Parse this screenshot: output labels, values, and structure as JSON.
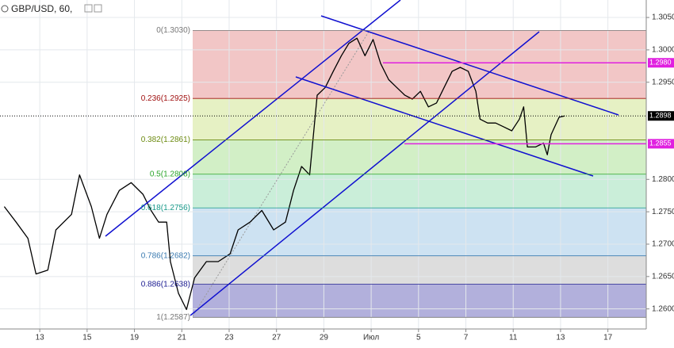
{
  "chart_data": {
    "type": "line",
    "title": "GBP/USD, 60,",
    "x": [
      -0.75,
      -0.5,
      -0.25,
      -0.08,
      0.17,
      0.34,
      0.67,
      0.84,
      1.09,
      1.26,
      1.42,
      1.68,
      1.93,
      2.18,
      2.35,
      2.51,
      2.68,
      2.76,
      2.93,
      3.1,
      3.27,
      3.52,
      3.77,
      4.02,
      4.19,
      4.44,
      4.69,
      4.94,
      5.19,
      5.36,
      5.53,
      5.7,
      5.86,
      6.03,
      6.2,
      6.37,
      6.53,
      6.7,
      6.87,
      7.04,
      7.2,
      7.37,
      7.54,
      7.71,
      7.87,
      8.04,
      8.21,
      8.38,
      8.54,
      8.71,
      8.88,
      9.05,
      9.21,
      9.3,
      9.46,
      9.63,
      9.8,
      9.97,
      10.13,
      10.22,
      10.3,
      10.47,
      10.64,
      10.72,
      10.8,
      10.97,
      11.09
    ],
    "series": [
      {
        "color": "#000000",
        "values": [
          1.2758,
          1.2734,
          1.2709,
          1.2654,
          1.266,
          1.2722,
          1.2746,
          1.2807,
          1.2758,
          1.2709,
          1.2746,
          1.2783,
          1.2795,
          1.2777,
          1.2752,
          1.2734,
          1.2734,
          1.2673,
          1.2624,
          1.2599,
          1.2648,
          1.2673,
          1.2673,
          1.2685,
          1.2722,
          1.2734,
          1.2752,
          1.2722,
          1.2734,
          1.2783,
          1.282,
          1.2807,
          1.293,
          1.2942,
          1.2967,
          1.2991,
          1.301,
          1.3018,
          1.2991,
          1.3016,
          1.2979,
          1.2954,
          1.2942,
          1.293,
          1.2924,
          1.2936,
          1.2912,
          1.2918,
          1.2942,
          1.2967,
          1.2973,
          1.2967,
          1.2936,
          1.2893,
          1.2887,
          1.2887,
          1.2881,
          1.2875,
          1.2893,
          1.2912,
          1.285,
          1.285,
          1.2856,
          1.2838,
          1.2869,
          1.2896,
          1.2898
        ]
      }
    ],
    "xlim": [
      -0.84,
      12.81
    ],
    "xticks": [
      {
        "value": 0,
        "label": "13"
      },
      {
        "value": 1,
        "label": "15"
      },
      {
        "value": 2,
        "label": "19"
      },
      {
        "value": 3,
        "label": "21"
      },
      {
        "value": 4,
        "label": "23"
      },
      {
        "value": 5,
        "label": "27"
      },
      {
        "value": 6,
        "label": "29"
      },
      {
        "value": 7,
        "label": "Июл"
      },
      {
        "value": 8,
        "label": "5"
      },
      {
        "value": 9,
        "label": "7"
      },
      {
        "value": 10,
        "label": "11"
      },
      {
        "value": 11,
        "label": "13"
      },
      {
        "value": 12,
        "label": "17"
      }
    ],
    "ylim": [
      1.2569,
      1.3077
    ],
    "yticks": [
      {
        "value": 1.305,
        "label": "1.3050"
      },
      {
        "value": 1.3,
        "label": "1.3000"
      },
      {
        "value": 1.295,
        "label": "1.2950"
      },
      {
        "value": 1.28,
        "label": "1.2800"
      },
      {
        "value": 1.275,
        "label": "1.2750"
      },
      {
        "value": 1.27,
        "label": "1.2700"
      },
      {
        "value": 1.265,
        "label": "1.2650"
      },
      {
        "value": 1.26,
        "label": "1.2600"
      }
    ],
    "grid": true,
    "fib_levels": [
      {
        "value": 1.303,
        "label": "0(1.3030)",
        "color": "#777777",
        "fill": "#f2c6c6"
      },
      {
        "value": 1.2925,
        "label": "0.236(1.2925)",
        "color": "#a01010",
        "fill": "#e6f1c4"
      },
      {
        "value": 1.2861,
        "label": "0.382(1.2861)",
        "color": "#6c8a10",
        "fill": "#d2efc6"
      },
      {
        "value": 1.2808,
        "label": "0.5(1.2808)",
        "color": "#2aa52a",
        "fill": "#caeed9"
      },
      {
        "value": 1.2756,
        "label": "0.618(1.2756)",
        "color": "#1a9a8a",
        "fill": "#cde2f2"
      },
      {
        "value": 1.2682,
        "label": "0.786(1.2682)",
        "color": "#3a7ab0",
        "fill": "#dddddd"
      },
      {
        "value": 1.2638,
        "label": "0.886(1.2638)",
        "color": "#1a1a90",
        "fill": "#b2b0dc"
      },
      {
        "value": 1.2587,
        "label": "1(1.2587)",
        "color": "#777777"
      }
    ],
    "price_lines": [
      {
        "value": 1.298,
        "label": "1.2980",
        "color": "#e020e0"
      },
      {
        "value": 1.2855,
        "label": "1.2855",
        "color": "#e020e0"
      }
    ],
    "current_price": {
      "value": 1.2898,
      "label": "1.2898",
      "color": "#000000"
    }
  }
}
